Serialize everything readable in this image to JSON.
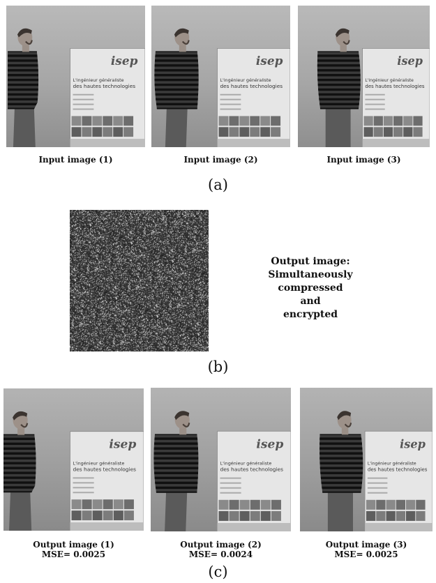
{
  "panel_a": {
    "captions": [
      "Input image (1)",
      "Input image (2)",
      "Input image (3)"
    ],
    "label": "(a)"
  },
  "panel_b": {
    "output_lines": [
      "Output image:",
      "Simultaneously",
      "compressed",
      "and",
      "encrypted"
    ],
    "label": "(b)"
  },
  "panel_c": {
    "images": [
      {
        "title": "Output image (1)",
        "mse": "MSE= 0.0025"
      },
      {
        "title": "Output image (2)",
        "mse": "MSE= 0.0024"
      },
      {
        "title": "Output image (3)",
        "mse": "MSE= 0.0025"
      }
    ],
    "label": "(c)"
  },
  "poster": {
    "logo": "isep",
    "headline_1": "L'ingénieur généraliste",
    "headline_2": "des hautes technologies"
  }
}
